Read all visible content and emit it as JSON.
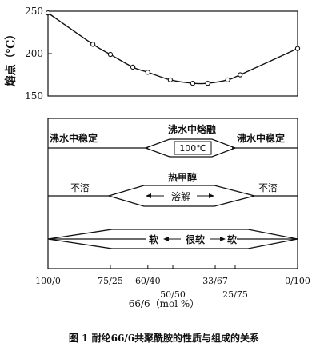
{
  "chart_data": {
    "type": "line",
    "ylabel": "熔点（℃）",
    "ylim": [
      150,
      250
    ],
    "yticks": [
      "250",
      "200",
      "150"
    ],
    "grid": false,
    "x_axis_label": "66/6（mol %）",
    "x_ticks": [
      {
        "pct": 0,
        "label": "100/0"
      },
      {
        "pct": 25,
        "label": "75/25"
      },
      {
        "pct": 40,
        "label": "60/40"
      },
      {
        "pct": 50,
        "label": "50/50"
      },
      {
        "pct": 67,
        "label": "33/67"
      },
      {
        "pct": 75,
        "label": "25/75"
      },
      {
        "pct": 100,
        "label": "0/100"
      }
    ],
    "series": [
      {
        "x": [
          0,
          18,
          25,
          34,
          40,
          49,
          58,
          64,
          72,
          77,
          100
        ],
        "y": [
          248,
          211,
          199,
          184,
          178,
          169,
          165,
          165,
          169,
          175,
          206
        ]
      }
    ],
    "properties": {
      "water": {
        "left_label": "沸水中稳定",
        "center_label": "沸水中熔融",
        "box_label": "100℃",
        "right_label": "沸水中稳定"
      },
      "methanol": {
        "left_label": "不溶",
        "top_label": "热甲醇",
        "box_label": "溶解",
        "right_label": "不溶"
      },
      "softness": {
        "left_label": "软",
        "center_label": "很软",
        "right_label": "软"
      }
    },
    "caption": "图 1  耐纶66/6共聚酰胺的性质与组成的关系"
  }
}
